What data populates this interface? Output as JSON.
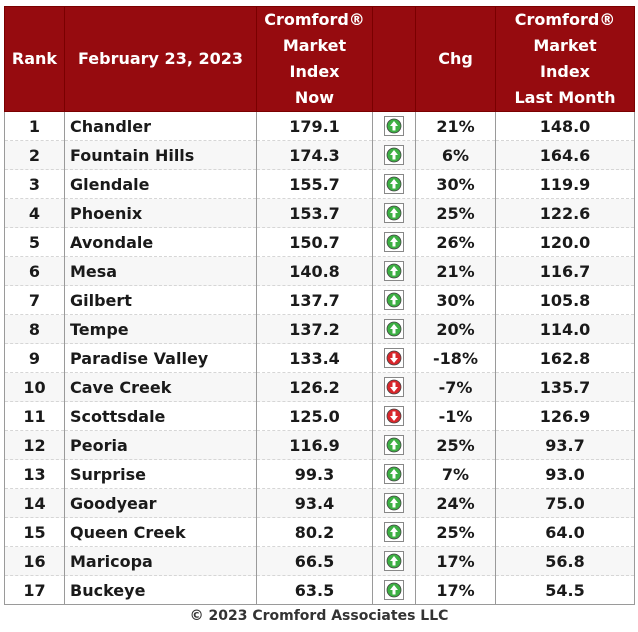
{
  "header": {
    "rank": "Rank",
    "date": "February 23, 2023",
    "now": [
      "Cromford®",
      "Market",
      "Index",
      "Now"
    ],
    "chg": "Chg",
    "last": [
      "Cromford®",
      "Market",
      "Index",
      "Last Month"
    ]
  },
  "rows": [
    {
      "rank": "1",
      "city": "Chandler",
      "now": "179.1",
      "dir": "up",
      "chg": "21%",
      "last": "148.0"
    },
    {
      "rank": "2",
      "city": "Fountain Hills",
      "now": "174.3",
      "dir": "up",
      "chg": "6%",
      "last": "164.6"
    },
    {
      "rank": "3",
      "city": "Glendale",
      "now": "155.7",
      "dir": "up",
      "chg": "30%",
      "last": "119.9"
    },
    {
      "rank": "4",
      "city": "Phoenix",
      "now": "153.7",
      "dir": "up",
      "chg": "25%",
      "last": "122.6"
    },
    {
      "rank": "5",
      "city": "Avondale",
      "now": "150.7",
      "dir": "up",
      "chg": "26%",
      "last": "120.0"
    },
    {
      "rank": "6",
      "city": "Mesa",
      "now": "140.8",
      "dir": "up",
      "chg": "21%",
      "last": "116.7"
    },
    {
      "rank": "7",
      "city": "Gilbert",
      "now": "137.7",
      "dir": "up",
      "chg": "30%",
      "last": "105.8"
    },
    {
      "rank": "8",
      "city": "Tempe",
      "now": "137.2",
      "dir": "up",
      "chg": "20%",
      "last": "114.0"
    },
    {
      "rank": "9",
      "city": "Paradise Valley",
      "now": "133.4",
      "dir": "down",
      "chg": "-18%",
      "last": "162.8"
    },
    {
      "rank": "10",
      "city": "Cave Creek",
      "now": "126.2",
      "dir": "down",
      "chg": "-7%",
      "last": "135.7"
    },
    {
      "rank": "11",
      "city": "Scottsdale",
      "now": "125.0",
      "dir": "down",
      "chg": "-1%",
      "last": "126.9"
    },
    {
      "rank": "12",
      "city": "Peoria",
      "now": "116.9",
      "dir": "up",
      "chg": "25%",
      "last": "93.7"
    },
    {
      "rank": "13",
      "city": "Surprise",
      "now": "99.3",
      "dir": "up",
      "chg": "7%",
      "last": "93.0"
    },
    {
      "rank": "14",
      "city": "Goodyear",
      "now": "93.4",
      "dir": "up",
      "chg": "24%",
      "last": "75.0"
    },
    {
      "rank": "15",
      "city": "Queen Creek",
      "now": "80.2",
      "dir": "up",
      "chg": "25%",
      "last": "64.0"
    },
    {
      "rank": "16",
      "city": "Maricopa",
      "now": "66.5",
      "dir": "up",
      "chg": "17%",
      "last": "56.8"
    },
    {
      "rank": "17",
      "city": "Buckeye",
      "now": "63.5",
      "dir": "up",
      "chg": "17%",
      "last": "54.5"
    }
  ],
  "colors": {
    "header_bg": "#960b0f",
    "up": "#3cb043",
    "down": "#d9262b"
  },
  "icons": {
    "up": "green-up-arrow-icon",
    "down": "red-down-arrow-icon"
  },
  "footer": "© 2023 Cromford Associates LLC"
}
